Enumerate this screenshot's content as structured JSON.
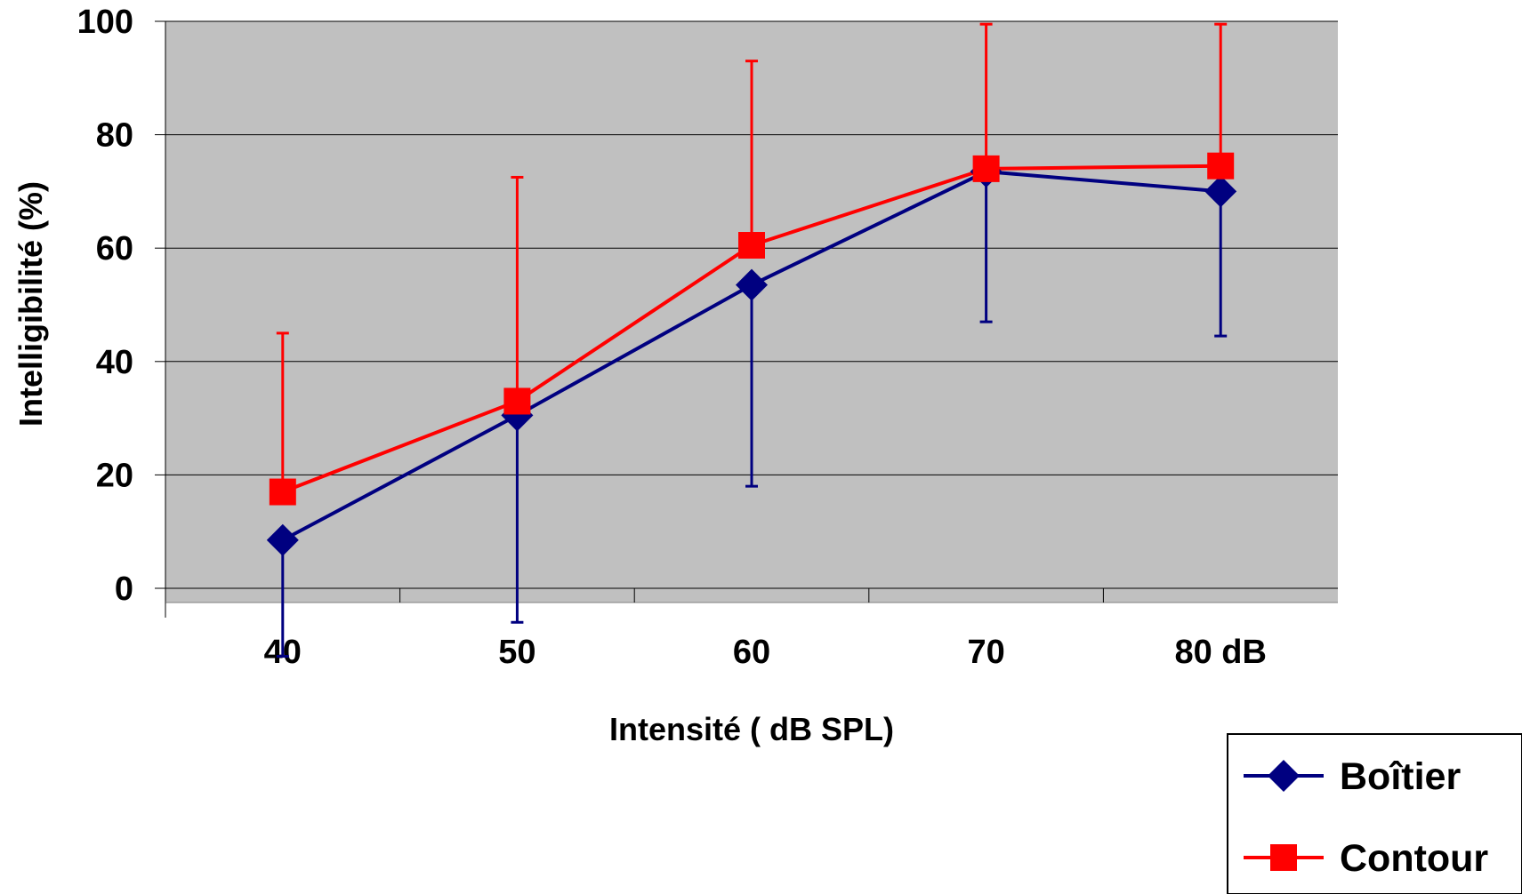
{
  "chart_data": {
    "type": "line",
    "x": [
      "40",
      "50",
      "60",
      "70",
      "80 dB"
    ],
    "xlabel": "Intensité ( dB SPL)",
    "ylabel": "Intelligibilité (%)",
    "ylim": [
      0,
      100
    ],
    "yticks": [
      "0",
      "20",
      "40",
      "60",
      "80",
      "100"
    ],
    "grid": true,
    "background_color": "#c0c0c0",
    "legend_position": "bottom-right",
    "series": [
      {
        "name": "Boîtier",
        "marker": "diamond",
        "color": "#000080",
        "values": [
          8.5,
          30.5,
          53.5,
          73.5,
          70
        ],
        "error_upper": [
          null,
          null,
          null,
          null,
          null
        ],
        "error_lower": [
          -12,
          -6,
          18,
          47,
          44.5
        ]
      },
      {
        "name": "Contour",
        "marker": "square",
        "color": "#ff0000",
        "values": [
          17,
          33,
          60.5,
          74,
          74.5
        ],
        "error_upper": [
          45,
          72.5,
          93,
          99.5,
          99.5
        ],
        "error_lower": [
          null,
          null,
          null,
          null,
          null
        ]
      }
    ]
  }
}
